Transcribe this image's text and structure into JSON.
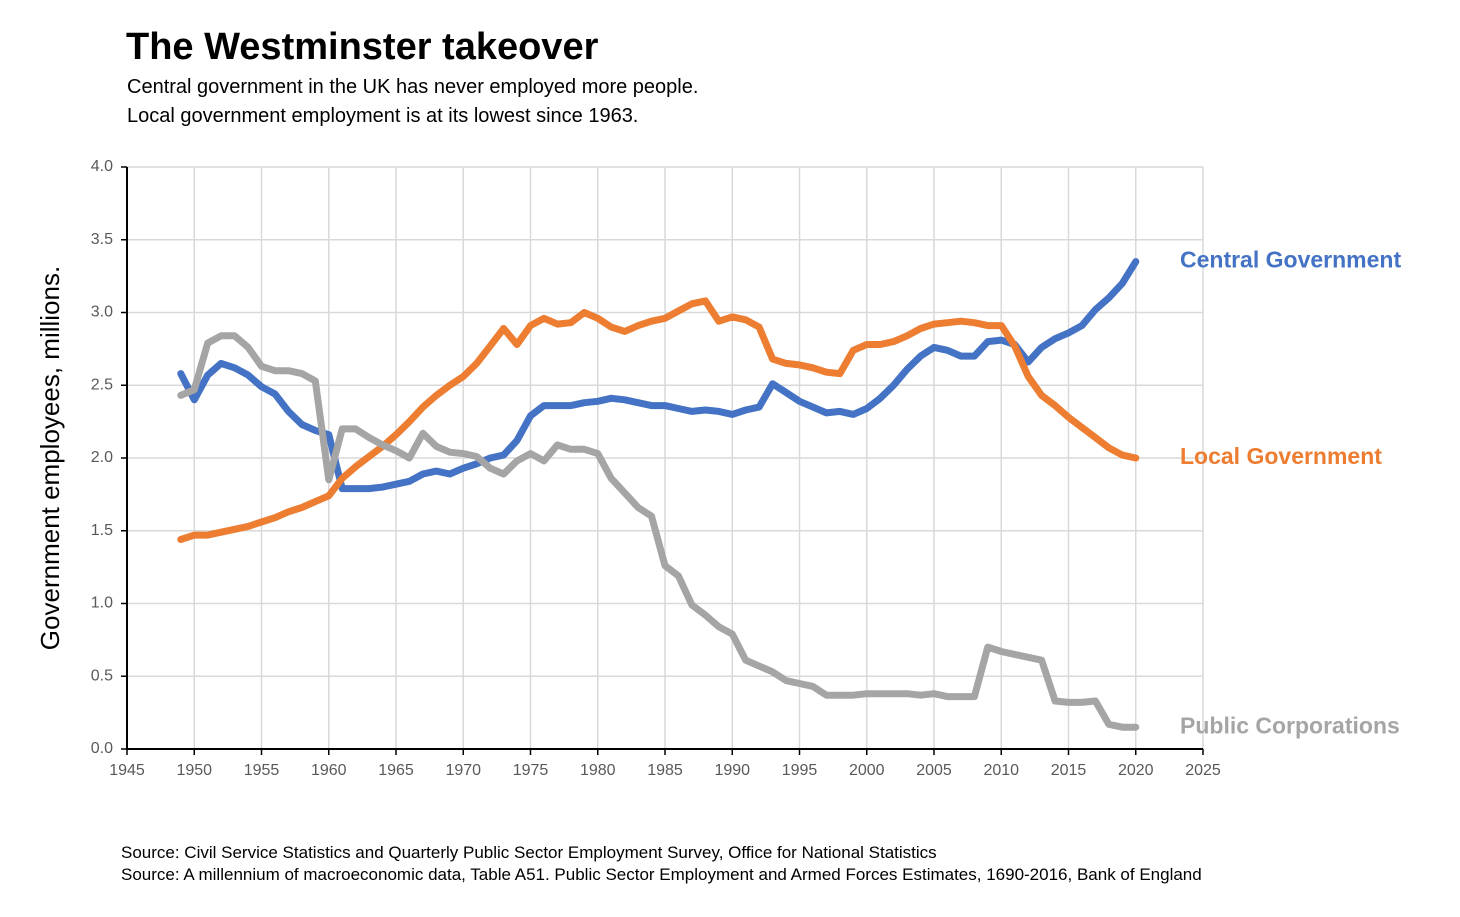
{
  "title": "The Westminster takeover",
  "subtitle_lines": [
    "Central government in the UK has never employed more people.",
    "Local government employment is at its lowest since 1963."
  ],
  "sources": [
    "Source: Civil Service Statistics and Quarterly Public Sector Employment Survey, Office for National Statistics",
    "Source: A millennium of macroeconomic data, Table A51. Public Sector Employment and Armed Forces Estimates, 1690-2016, Bank of England"
  ],
  "chart_data": {
    "type": "line",
    "ylabel": "Government employees, millions.",
    "xlabel": "",
    "xlim": [
      1945,
      2025
    ],
    "ylim": [
      0,
      4
    ],
    "x_ticks": [
      "1945",
      "1950",
      "1955",
      "1960",
      "1965",
      "1970",
      "1975",
      "1980",
      "1985",
      "1990",
      "1995",
      "2000",
      "2005",
      "2010",
      "2015",
      "2020",
      "2025"
    ],
    "y_ticks": [
      "0.0",
      "0.5",
      "1.0",
      "1.5",
      "2.0",
      "2.5",
      "3.0",
      "3.5",
      "4.0"
    ],
    "grid": true,
    "legend": "direct labels at right end of each line",
    "x": [
      1949,
      1950,
      1951,
      1952,
      1953,
      1954,
      1955,
      1956,
      1957,
      1958,
      1959,
      1960,
      1961,
      1962,
      1963,
      1964,
      1965,
      1966,
      1967,
      1968,
      1969,
      1970,
      1971,
      1972,
      1973,
      1974,
      1975,
      1976,
      1977,
      1978,
      1979,
      1980,
      1981,
      1982,
      1983,
      1984,
      1985,
      1986,
      1987,
      1988,
      1989,
      1990,
      1991,
      1992,
      1993,
      1994,
      1995,
      1996,
      1997,
      1998,
      1999,
      2000,
      2001,
      2002,
      2003,
      2004,
      2005,
      2006,
      2007,
      2008,
      2009,
      2010,
      2011,
      2012,
      2013,
      2014,
      2015,
      2016,
      2017,
      2018,
      2019,
      2020
    ],
    "series": [
      {
        "name": "Central Government",
        "color": "#4472C4",
        "values": [
          2.58,
          2.4,
          2.57,
          2.65,
          2.62,
          2.57,
          2.49,
          2.44,
          2.32,
          2.23,
          2.19,
          2.16,
          1.79,
          1.79,
          1.79,
          1.8,
          1.82,
          1.84,
          1.89,
          1.91,
          1.89,
          1.93,
          1.96,
          2.0,
          2.02,
          2.12,
          2.29,
          2.36,
          2.36,
          2.36,
          2.38,
          2.39,
          2.41,
          2.4,
          2.38,
          2.36,
          2.36,
          2.34,
          2.32,
          2.33,
          2.32,
          2.3,
          2.33,
          2.35,
          2.51,
          2.45,
          2.39,
          2.35,
          2.31,
          2.32,
          2.3,
          2.34,
          2.41,
          2.5,
          2.61,
          2.7,
          2.76,
          2.74,
          2.7,
          2.7,
          2.8,
          2.81,
          2.78,
          2.66,
          2.76,
          2.82,
          2.86,
          2.91,
          3.02,
          3.1,
          3.2,
          3.35
        ]
      },
      {
        "name": "Local Government",
        "color": "#ED7D31",
        "values": [
          1.44,
          1.47,
          1.47,
          1.49,
          1.51,
          1.53,
          1.56,
          1.59,
          1.63,
          1.66,
          1.7,
          1.74,
          1.86,
          1.94,
          2.01,
          2.08,
          2.16,
          2.25,
          2.35,
          2.43,
          2.5,
          2.56,
          2.65,
          2.77,
          2.89,
          2.78,
          2.91,
          2.96,
          2.92,
          2.93,
          3.0,
          2.96,
          2.9,
          2.87,
          2.91,
          2.94,
          2.96,
          3.01,
          3.06,
          3.08,
          2.94,
          2.97,
          2.95,
          2.9,
          2.68,
          2.65,
          2.64,
          2.62,
          2.59,
          2.58,
          2.74,
          2.78,
          2.78,
          2.8,
          2.84,
          2.89,
          2.92,
          2.93,
          2.94,
          2.93,
          2.91,
          2.91,
          2.77,
          2.56,
          2.43,
          2.36,
          2.28,
          2.21,
          2.14,
          2.07,
          2.02,
          2.0
        ]
      },
      {
        "name": "Public Corporations",
        "color": "#A5A5A5",
        "values": [
          2.43,
          2.47,
          2.79,
          2.84,
          2.84,
          2.76,
          2.63,
          2.6,
          2.6,
          2.58,
          2.53,
          1.85,
          2.2,
          2.2,
          2.14,
          2.09,
          2.05,
          2.0,
          2.17,
          2.08,
          2.04,
          2.03,
          2.01,
          1.93,
          1.89,
          1.98,
          2.03,
          1.98,
          2.09,
          2.06,
          2.06,
          2.03,
          1.86,
          1.76,
          1.66,
          1.6,
          1.26,
          1.19,
          0.99,
          0.92,
          0.84,
          0.79,
          0.61,
          0.57,
          0.53,
          0.47,
          0.45,
          0.43,
          0.37,
          0.37,
          0.37,
          0.38,
          0.38,
          0.38,
          0.38,
          0.37,
          0.38,
          0.36,
          0.36,
          0.36,
          0.7,
          0.67,
          0.65,
          0.63,
          0.61,
          0.33,
          0.32,
          0.32,
          0.33,
          0.17,
          0.15,
          0.15
        ]
      }
    ]
  }
}
